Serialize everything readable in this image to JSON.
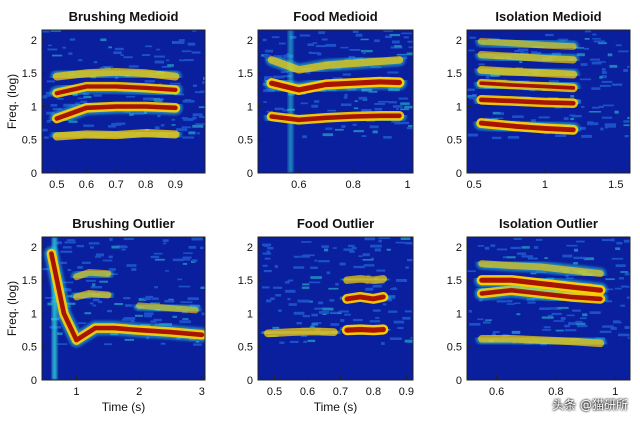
{
  "watermark": "头条 @猫研所",
  "colors": {
    "background": "#0a1f9e",
    "band_core": "#a00000",
    "band_mid": "#ffd000",
    "band_edge": "#2fd2d8"
  },
  "chart_data": [
    {
      "type": "heatmap",
      "title": "Brushing Medioid",
      "xlabel": "",
      "ylabel": "Freq. (log)",
      "xlim": [
        0.45,
        1.0
      ],
      "ylim": [
        0,
        2.15
      ],
      "xticks": [
        0.5,
        0.6,
        0.7,
        0.8,
        0.9
      ],
      "xticklabels": [
        "0.5",
        "0.6",
        "0.7",
        "0.8",
        "0.9"
      ],
      "yticks": [
        0,
        0.5,
        1,
        1.5,
        2
      ],
      "yticklabels": [
        "0",
        "0.5",
        "1",
        "1.5",
        "2"
      ],
      "harmonic_bands": [
        {
          "x": [
            0.5,
            0.6,
            0.7,
            0.8,
            0.9
          ],
          "y": [
            0.55,
            0.58,
            0.57,
            0.6,
            0.58
          ],
          "intensity": 0.6
        },
        {
          "x": [
            0.5,
            0.6,
            0.7,
            0.8,
            0.9
          ],
          "y": [
            0.82,
            0.98,
            1.0,
            1.0,
            0.98
          ],
          "intensity": 0.85
        },
        {
          "x": [
            0.5,
            0.6,
            0.7,
            0.8,
            0.9
          ],
          "y": [
            1.2,
            1.3,
            1.3,
            1.28,
            1.25
          ],
          "intensity": 0.8
        },
        {
          "x": [
            0.5,
            0.6,
            0.7,
            0.8,
            0.9
          ],
          "y": [
            1.45,
            1.5,
            1.52,
            1.5,
            1.45
          ],
          "intensity": 0.55
        }
      ]
    },
    {
      "type": "heatmap",
      "title": "Food Medioid",
      "xlabel": "",
      "ylabel": "",
      "xlim": [
        0.45,
        1.02
      ],
      "ylim": [
        0,
        2.15
      ],
      "xticks": [
        0.6,
        0.8,
        1
      ],
      "xticklabels": [
        "0.6",
        "0.8",
        "1"
      ],
      "yticks": [
        0,
        0.5,
        1,
        1.5,
        2
      ],
      "yticklabels": [
        "0",
        "0.5",
        "1",
        "1.5",
        "2"
      ],
      "harmonic_bands": [
        {
          "x": [
            0.5,
            0.6,
            0.7,
            0.8,
            0.9,
            0.97
          ],
          "y": [
            0.85,
            0.8,
            0.83,
            0.85,
            0.86,
            0.86
          ],
          "intensity": 0.85
        },
        {
          "x": [
            0.5,
            0.6,
            0.7,
            0.8,
            0.9,
            0.97
          ],
          "y": [
            1.35,
            1.25,
            1.33,
            1.35,
            1.37,
            1.36
          ],
          "intensity": 0.95
        },
        {
          "x": [
            0.5,
            0.6,
            0.7,
            0.8,
            0.9,
            0.97
          ],
          "y": [
            1.7,
            1.55,
            1.62,
            1.65,
            1.68,
            1.7
          ],
          "intensity": 0.5
        }
      ],
      "vertical_lines": [
        {
          "x": 0.57,
          "intensity": 0.55
        }
      ]
    },
    {
      "type": "heatmap",
      "title": "Isolation Medioid",
      "xlabel": "",
      "ylabel": "",
      "xlim": [
        0.45,
        1.6
      ],
      "ylim": [
        0,
        2.15
      ],
      "xticks": [
        0.5,
        1,
        1.5
      ],
      "xticklabels": [
        "0.5",
        "1",
        "1.5"
      ],
      "yticks": [
        0,
        0.5,
        1,
        1.5,
        2
      ],
      "yticklabels": [
        "0",
        "0.5",
        "1",
        "1.5",
        "2"
      ],
      "harmonic_bands": [
        {
          "x": [
            0.55,
            0.8,
            1.0,
            1.2
          ],
          "y": [
            0.75,
            0.7,
            0.67,
            0.65
          ],
          "intensity": 0.9
        },
        {
          "x": [
            0.55,
            0.8,
            1.0,
            1.2
          ],
          "y": [
            1.1,
            1.08,
            1.06,
            1.05
          ],
          "intensity": 0.85
        },
        {
          "x": [
            0.55,
            0.8,
            1.0,
            1.2
          ],
          "y": [
            1.35,
            1.32,
            1.3,
            1.28
          ],
          "intensity": 0.7
        },
        {
          "x": [
            0.55,
            0.8,
            1.0,
            1.2
          ],
          "y": [
            1.55,
            1.52,
            1.5,
            1.48
          ],
          "intensity": 0.55
        },
        {
          "x": [
            0.55,
            0.8,
            1.0,
            1.2
          ],
          "y": [
            1.78,
            1.75,
            1.72,
            1.7
          ],
          "intensity": 0.45
        },
        {
          "x": [
            0.55,
            0.8,
            1.0,
            1.2
          ],
          "y": [
            1.98,
            1.95,
            1.92,
            1.9
          ],
          "intensity": 0.35
        }
      ]
    },
    {
      "type": "heatmap",
      "title": "Brushing Outlier",
      "xlabel": "Time (s)",
      "ylabel": "Freq. (log)",
      "xlim": [
        0.45,
        3.05
      ],
      "ylim": [
        0,
        2.15
      ],
      "xticks": [
        1,
        2,
        3
      ],
      "xticklabels": [
        "1",
        "2",
        "3"
      ],
      "yticks": [
        0,
        0.5,
        1,
        1.5,
        2
      ],
      "yticklabels": [
        "0",
        "0.5",
        "1",
        "1.5",
        "2"
      ],
      "harmonic_bands": [
        {
          "x": [
            0.6,
            0.8,
            1.0,
            1.3,
            1.6,
            2.0,
            2.5,
            3.0
          ],
          "y": [
            1.9,
            1.0,
            0.6,
            0.78,
            0.78,
            0.75,
            0.72,
            0.68
          ],
          "intensity": 0.85
        },
        {
          "x": [
            1.0,
            1.2,
            1.5
          ],
          "y": [
            1.25,
            1.3,
            1.28
          ],
          "intensity": 0.4
        },
        {
          "x": [
            1.0,
            1.2,
            1.5
          ],
          "y": [
            1.55,
            1.62,
            1.6
          ],
          "intensity": 0.35
        },
        {
          "x": [
            2.0,
            2.5,
            2.9
          ],
          "y": [
            1.12,
            1.08,
            1.05
          ],
          "intensity": 0.3
        }
      ],
      "vertical_lines": [
        {
          "x": 0.65,
          "intensity": 0.8
        }
      ]
    },
    {
      "type": "heatmap",
      "title": "Food Outlier",
      "xlabel": "Time (s)",
      "ylabel": "",
      "xlim": [
        0.45,
        0.92
      ],
      "ylim": [
        0,
        2.15
      ],
      "xticks": [
        0.5,
        0.6,
        0.7,
        0.8,
        0.9
      ],
      "xticklabels": [
        "0.5",
        "0.6",
        "0.7",
        "0.8",
        "0.9"
      ],
      "yticks": [
        0,
        0.5,
        1,
        1.5,
        2
      ],
      "yticklabels": [
        "0",
        "0.5",
        "1",
        "1.5",
        "2"
      ],
      "harmonic_bands": [
        {
          "x": [
            0.48,
            0.55,
            0.62,
            0.68
          ],
          "y": [
            0.7,
            0.72,
            0.73,
            0.72
          ],
          "intensity": 0.55
        },
        {
          "x": [
            0.72,
            0.76,
            0.8,
            0.83
          ],
          "y": [
            0.75,
            0.76,
            0.75,
            0.76
          ],
          "intensity": 0.95
        },
        {
          "x": [
            0.72,
            0.76,
            0.8,
            0.83
          ],
          "y": [
            1.22,
            1.25,
            1.22,
            1.25
          ],
          "intensity": 0.9
        },
        {
          "x": [
            0.72,
            0.76,
            0.8,
            0.83
          ],
          "y": [
            1.5,
            1.52,
            1.5,
            1.52
          ],
          "intensity": 0.5
        }
      ]
    },
    {
      "type": "heatmap",
      "title": "Isolation Outlier",
      "xlabel": "",
      "ylabel": "",
      "xlim": [
        0.5,
        1.05
      ],
      "ylim": [
        0,
        2.15
      ],
      "xticks": [
        0.6,
        0.8,
        1
      ],
      "xticklabels": [
        "0.6",
        "0.8",
        "1"
      ],
      "yticks": [
        0,
        0.5,
        1,
        1.5,
        2
      ],
      "yticklabels": [
        "0",
        "0.5",
        "1",
        "1.5",
        "2"
      ],
      "harmonic_bands": [
        {
          "x": [
            0.55,
            0.65,
            0.75,
            0.85,
            0.95
          ],
          "y": [
            0.62,
            0.62,
            0.6,
            0.58,
            0.55
          ],
          "intensity": 0.5
        },
        {
          "x": [
            0.55,
            0.65,
            0.75,
            0.85,
            0.95
          ],
          "y": [
            1.3,
            1.35,
            1.3,
            1.25,
            1.22
          ],
          "intensity": 0.85
        },
        {
          "x": [
            0.55,
            0.65,
            0.75,
            0.85,
            0.95
          ],
          "y": [
            1.5,
            1.5,
            1.45,
            1.4,
            1.35
          ],
          "intensity": 0.95
        },
        {
          "x": [
            0.55,
            0.65,
            0.75,
            0.85,
            0.95
          ],
          "y": [
            1.75,
            1.72,
            1.7,
            1.65,
            1.6
          ],
          "intensity": 0.4
        }
      ]
    }
  ]
}
